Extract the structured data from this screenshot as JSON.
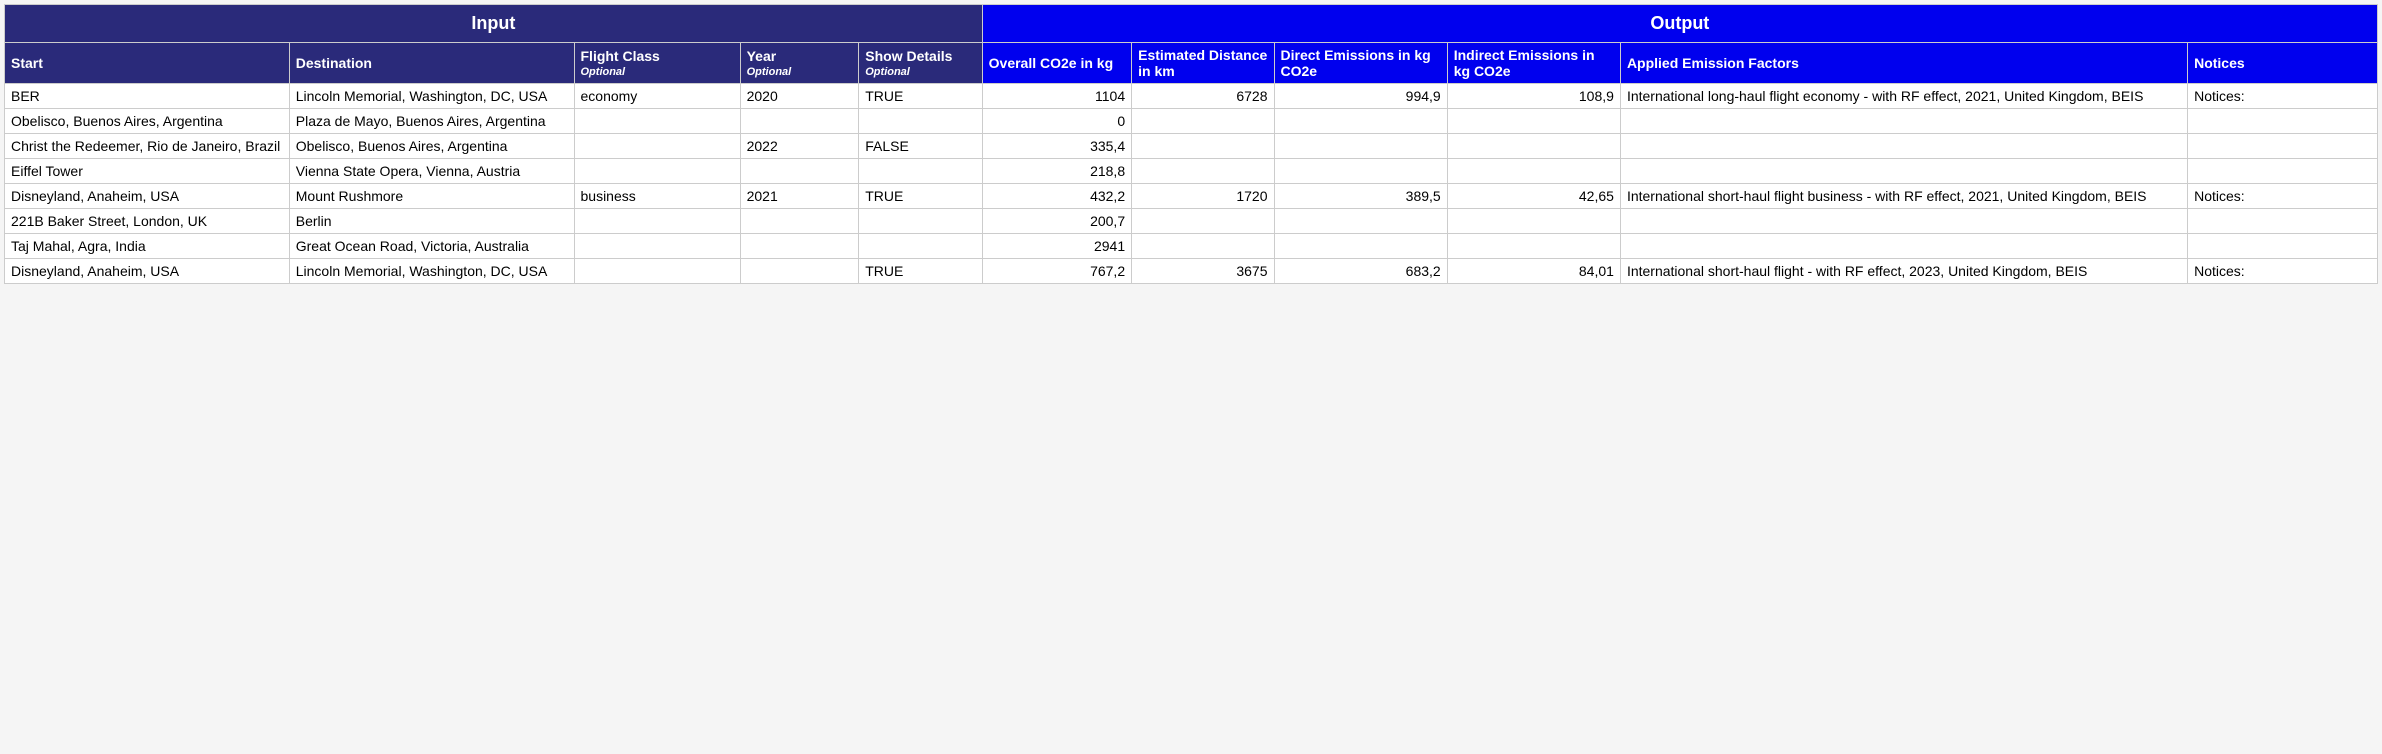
{
  "colors": {
    "input_header_bg": "#2a2a7a",
    "output_header_bg": "#0000ee",
    "border": "#cccccc",
    "text": "#000000",
    "header_text": "#ffffff"
  },
  "group_headers": {
    "input": "Input",
    "output": "Output"
  },
  "columns": {
    "start": {
      "label": "Start",
      "optional": ""
    },
    "destination": {
      "label": "Destination",
      "optional": ""
    },
    "flight_class": {
      "label": "Flight Class",
      "optional": "Optional"
    },
    "year": {
      "label": "Year",
      "optional": "Optional"
    },
    "show_details": {
      "label": "Show Details",
      "optional": "Optional"
    },
    "overall": {
      "label": "Overall CO2e in kg"
    },
    "distance": {
      "label": "Estimated Distance in km"
    },
    "direct": {
      "label": "Direct Emissions in kg CO2e"
    },
    "indirect": {
      "label": "Indirect Emissions in kg CO2e"
    },
    "factors": {
      "label": "Applied Emission Factors"
    },
    "notices": {
      "label": "Notices"
    }
  },
  "col_widths": {
    "start": "12%",
    "destination": "12%",
    "flight_class": "7%",
    "year": "5%",
    "show_details": "5.2%",
    "overall": "6.3%",
    "distance": "6%",
    "direct": "7.3%",
    "indirect": "7.3%",
    "factors": "23.9%",
    "notices": "8%"
  },
  "rows": [
    {
      "start": "BER",
      "destination": "Lincoln Memorial, Washington, DC, USA",
      "flight_class": "economy",
      "year": "2020",
      "show_details": "TRUE",
      "overall": "1104",
      "distance": "6728",
      "direct": "994,9",
      "indirect": "108,9",
      "factors": "International long-haul flight economy - with RF effect, 2021, United Kingdom, BEIS",
      "notices": "Notices:"
    },
    {
      "start": "Obelisco, Buenos Aires, Argentina",
      "destination": "Plaza de Mayo, Buenos Aires, Argentina",
      "flight_class": "",
      "year": "",
      "show_details": "",
      "overall": "0",
      "distance": "",
      "direct": "",
      "indirect": "",
      "factors": "",
      "notices": ""
    },
    {
      "start": "Christ the Redeemer, Rio de Janeiro, Brazil",
      "destination": "Obelisco, Buenos Aires, Argentina",
      "flight_class": "",
      "year": "2022",
      "show_details": "FALSE",
      "overall": "335,4",
      "distance": "",
      "direct": "",
      "indirect": "",
      "factors": "",
      "notices": ""
    },
    {
      "start": "Eiffel Tower",
      "destination": "Vienna State Opera, Vienna, Austria",
      "flight_class": "",
      "year": "",
      "show_details": "",
      "overall": "218,8",
      "distance": "",
      "direct": "",
      "indirect": "",
      "factors": "",
      "notices": ""
    },
    {
      "start": "Disneyland, Anaheim, USA",
      "destination": "Mount Rushmore",
      "flight_class": "business",
      "year": "2021",
      "show_details": "TRUE",
      "overall": "432,2",
      "distance": "1720",
      "direct": "389,5",
      "indirect": "42,65",
      "factors": "International short-haul flight business - with RF effect, 2021, United Kingdom, BEIS",
      "notices": "Notices:"
    },
    {
      "start": "221B Baker Street, London, UK",
      "destination": "Berlin",
      "flight_class": "",
      "year": "",
      "show_details": "",
      "overall": "200,7",
      "distance": "",
      "direct": "",
      "indirect": "",
      "factors": "",
      "notices": ""
    },
    {
      "start": "Taj Mahal, Agra, India",
      "destination": "Great Ocean Road, Victoria, Australia",
      "flight_class": "",
      "year": "",
      "show_details": "",
      "overall": "2941",
      "distance": "",
      "direct": "",
      "indirect": "",
      "factors": "",
      "notices": ""
    },
    {
      "start": "Disneyland, Anaheim, USA",
      "destination": "Lincoln Memorial, Washington, DC, USA",
      "flight_class": "",
      "year": "",
      "show_details": "TRUE",
      "overall": "767,2",
      "distance": "3675",
      "direct": "683,2",
      "indirect": "84,01",
      "factors": "International short-haul flight - with RF effect, 2023, United Kingdom, BEIS",
      "notices": "Notices:"
    }
  ]
}
